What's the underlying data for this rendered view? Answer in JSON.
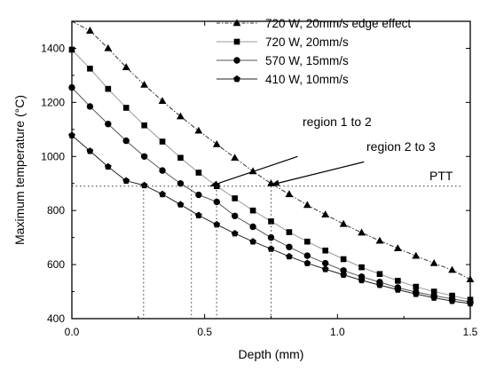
{
  "chart_data": {
    "type": "line",
    "xlabel": "Depth (mm)",
    "ylabel": "Maximum temperature (°C)",
    "xlim": [
      0.0,
      1.5
    ],
    "ylim": [
      400,
      1500
    ],
    "x_ticks": [
      0.0,
      0.5,
      1.0,
      1.5
    ],
    "x_tick_labels": [
      "0.0",
      "0.5",
      "1.0",
      "1.5"
    ],
    "y_ticks": [
      400,
      600,
      800,
      1000,
      1200,
      1400
    ],
    "y_tick_labels": [
      "400",
      "600",
      "800",
      "1000",
      "1200",
      "1400"
    ],
    "grid": false,
    "legend_position": "top-right",
    "x": [
      0.0,
      0.0682,
      0.1364,
      0.2045,
      0.2727,
      0.3409,
      0.4091,
      0.4773,
      0.5455,
      0.6136,
      0.6818,
      0.75,
      0.8182,
      0.8864,
      0.9545,
      1.0227,
      1.0909,
      1.1591,
      1.2273,
      1.2955,
      1.3636,
      1.4318,
      1.5
    ],
    "series": [
      {
        "name": "720 W, 20mm/s edge effect",
        "marker": "triangle",
        "line_style": "dash-dot",
        "color": "#333333",
        "values": [
          1500,
          1465,
          1400,
          1330,
          1265,
          1205,
          1148,
          1095,
          1045,
          995,
          945,
          900,
          860,
          820,
          785,
          750,
          718,
          688,
          660,
          632,
          605,
          580,
          545
        ]
      },
      {
        "name": "720 W, 20mm/s",
        "marker": "square",
        "line_style": "solid",
        "color": "#999999",
        "values": [
          1395,
          1325,
          1250,
          1180,
          1115,
          1055,
          995,
          940,
          890,
          845,
          800,
          760,
          720,
          685,
          652,
          620,
          590,
          565,
          540,
          518,
          500,
          485,
          470
        ]
      },
      {
        "name": "570 W, 15mm/s",
        "marker": "circle",
        "line_style": "solid",
        "color": "#555555",
        "values": [
          1255,
          1185,
          1120,
          1058,
          1000,
          948,
          900,
          858,
          832,
          780,
          740,
          700,
          665,
          633,
          605,
          578,
          555,
          535,
          515,
          498,
          485,
          473,
          462
        ]
      },
      {
        "name": "410 W, 10mm/s",
        "marker": "pentagon",
        "line_style": "solid",
        "color": "#222222",
        "values": [
          1078,
          1020,
          962,
          910,
          893,
          860,
          822,
          782,
          748,
          715,
          685,
          658,
          630,
          605,
          583,
          562,
          542,
          524,
          507,
          491,
          477,
          465,
          456
        ]
      }
    ],
    "reference_line": {
      "label": "PTT",
      "y": 890
    },
    "drop_lines_x": [
      0.27,
      0.45,
      0.545,
      0.75
    ],
    "annotations": [
      {
        "text": "region 1 to 2",
        "from": [
          0.85,
          1000
        ],
        "to": [
          0.52,
          890
        ]
      },
      {
        "text": "region 2 to 3",
        "from": [
          1.1,
          980
        ],
        "to": [
          0.75,
          895
        ]
      }
    ]
  }
}
